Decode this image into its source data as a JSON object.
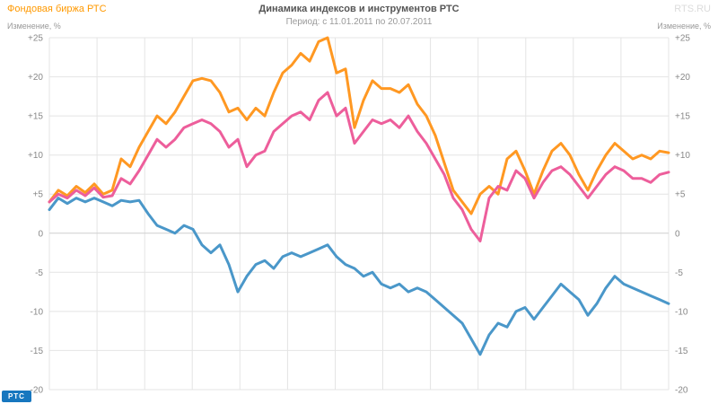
{
  "header": {
    "brand": "Фондовая биржа РТС",
    "site": "RTS.RU"
  },
  "axis": {
    "ylabel_left": "Изменение, %",
    "ylabel_right": "Изменение, %"
  },
  "footer": {
    "logo": "РТС"
  },
  "chart_data": {
    "type": "line",
    "title": "Динамика индексов и инструментов РТС",
    "subtitle": "Период: с 11.01.2011 по 20.07.2011",
    "x_range": [
      "11.01.2011",
      "20.07.2011"
    ],
    "ylabel": "Изменение, %",
    "ylim": [
      -20,
      25
    ],
    "grid": true,
    "x_gridline_count": 14,
    "legend": "none",
    "yticks": [
      {
        "value": 25,
        "label": "+25"
      },
      {
        "value": 20,
        "label": "+20"
      },
      {
        "value": 15,
        "label": "+15"
      },
      {
        "value": 10,
        "label": "+10"
      },
      {
        "value": 5,
        "label": "+5"
      },
      {
        "value": 0,
        "label": "0"
      },
      {
        "value": -5,
        "label": "-5"
      },
      {
        "value": -10,
        "label": "-10"
      },
      {
        "value": -15,
        "label": "-15"
      },
      {
        "value": -20,
        "label": "-20"
      }
    ],
    "colors": {
      "grid": "#e4e4e4",
      "zero_line": "#cfcfcf",
      "orange": "#ff9822",
      "pink": "#ed5e9b",
      "blue": "#4a97c9"
    },
    "series": [
      {
        "name": "orange",
        "color": "#ff9822",
        "values": [
          4.0,
          5.5,
          4.8,
          6.0,
          5.2,
          6.3,
          5.0,
          5.5,
          9.5,
          8.5,
          11.0,
          13.0,
          15.0,
          14.0,
          15.5,
          17.5,
          19.5,
          19.8,
          19.5,
          18.0,
          15.5,
          16.0,
          14.5,
          16.0,
          15.0,
          18.0,
          20.5,
          21.5,
          23.0,
          22.0,
          24.5,
          25.0,
          20.5,
          21.0,
          13.5,
          17.0,
          19.5,
          18.5,
          18.5,
          18.0,
          19.0,
          16.5,
          15.0,
          12.5,
          9.0,
          5.5,
          4.0,
          2.5,
          5.0,
          6.0,
          5.0,
          9.5,
          10.5,
          8.0,
          5.0,
          8.0,
          10.5,
          11.5,
          10.0,
          7.5,
          5.5,
          8.0,
          10.0,
          11.5,
          10.5,
          9.5,
          10.0,
          9.5,
          10.5,
          10.3
        ]
      },
      {
        "name": "pink",
        "color": "#ed5e9b",
        "values": [
          4.0,
          5.0,
          4.5,
          5.5,
          4.8,
          5.8,
          4.6,
          4.8,
          7.0,
          6.3,
          8.0,
          10.0,
          12.0,
          11.0,
          12.0,
          13.5,
          14.0,
          14.5,
          14.0,
          13.0,
          11.0,
          12.0,
          8.5,
          10.0,
          10.5,
          13.0,
          14.0,
          15.0,
          15.5,
          14.5,
          17.0,
          18.0,
          15.0,
          16.0,
          11.5,
          13.0,
          14.5,
          14.0,
          14.5,
          13.5,
          15.0,
          13.0,
          11.5,
          9.5,
          7.5,
          4.5,
          3.0,
          0.5,
          -1.0,
          4.5,
          6.0,
          5.5,
          8.0,
          7.0,
          4.5,
          6.5,
          8.0,
          8.5,
          7.5,
          6.0,
          4.5,
          6.0,
          7.5,
          8.5,
          8.0,
          7.0,
          7.0,
          6.5,
          7.5,
          7.8
        ]
      },
      {
        "name": "blue",
        "color": "#4a97c9",
        "values": [
          3.0,
          4.5,
          3.8,
          4.5,
          4.0,
          4.5,
          4.0,
          3.5,
          4.2,
          4.0,
          4.2,
          2.5,
          1.0,
          0.5,
          0.0,
          1.0,
          0.5,
          -1.5,
          -2.5,
          -1.5,
          -4.0,
          -7.5,
          -5.5,
          -4.0,
          -3.5,
          -4.5,
          -3.0,
          -2.5,
          -3.0,
          -2.5,
          -2.0,
          -1.5,
          -3.0,
          -4.0,
          -4.5,
          -5.5,
          -5.0,
          -6.5,
          -7.0,
          -6.5,
          -7.5,
          -7.0,
          -7.5,
          -8.5,
          -9.5,
          -10.5,
          -11.5,
          -13.5,
          -15.5,
          -13.0,
          -11.5,
          -12.0,
          -10.0,
          -9.5,
          -11.0,
          -9.5,
          -8.0,
          -6.5,
          -7.5,
          -8.5,
          -10.5,
          -9.0,
          -7.0,
          -5.5,
          -6.5,
          -7.0,
          -7.5,
          -8.0,
          -8.5,
          -9.0
        ]
      }
    ]
  }
}
